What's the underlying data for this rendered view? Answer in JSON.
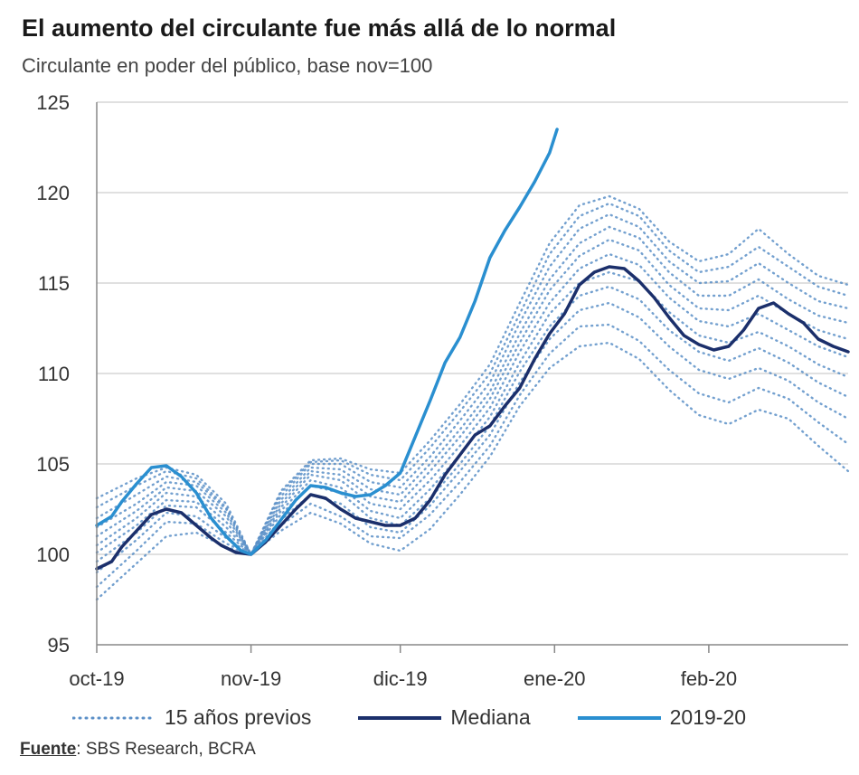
{
  "chart_data": {
    "type": "line",
    "title": "El aumento del circulante fue más allá de lo normal",
    "subtitle": "Circulante en poder del público, base nov=100",
    "x_ticks": [
      {
        "label": "oct-19",
        "x": 0
      },
      {
        "label": "nov-19",
        "x": 31
      },
      {
        "label": "dic-19",
        "x": 61
      },
      {
        "label": "ene-20",
        "x": 92
      },
      {
        "label": "feb-20",
        "x": 123
      }
    ],
    "xlim": [
      0,
      151
    ],
    "ylim": [
      95,
      125
    ],
    "y_ticks": [
      95,
      100,
      105,
      110,
      115,
      120,
      125
    ],
    "grid": true,
    "legend": [
      {
        "label": "15 años previos",
        "style": "dotted",
        "color": "#5b8fc7"
      },
      {
        "label": "Mediana",
        "style": "solid",
        "color": "#1b2f6b"
      },
      {
        "label": "2019-20",
        "style": "solid",
        "color": "#2a8fd0"
      }
    ],
    "series": [
      {
        "name": "Mediana",
        "color": "#1b2f6b",
        "x": [
          0,
          3,
          5,
          8,
          11,
          14,
          17,
          20,
          23,
          25,
          28,
          31,
          34,
          37,
          40,
          43,
          46,
          49,
          52,
          55,
          58,
          61,
          64,
          67,
          70,
          73,
          76,
          79,
          82,
          85,
          88,
          91,
          94,
          97,
          100,
          103,
          106,
          109,
          112,
          115,
          118,
          121,
          124,
          127,
          130,
          133,
          136,
          139,
          142,
          145,
          148,
          151
        ],
        "values": [
          99.2,
          99.6,
          100.4,
          101.3,
          102.2,
          102.5,
          102.3,
          101.6,
          100.9,
          100.5,
          100.1,
          100.0,
          100.7,
          101.6,
          102.5,
          103.3,
          103.1,
          102.5,
          102.0,
          101.8,
          101.6,
          101.6,
          102.0,
          103.0,
          104.4,
          105.5,
          106.6,
          107.1,
          108.2,
          109.2,
          110.8,
          112.2,
          113.3,
          114.9,
          115.6,
          115.9,
          115.8,
          115.1,
          114.2,
          113.1,
          112.1,
          111.6,
          111.3,
          111.5,
          112.4,
          113.6,
          113.9,
          113.3,
          112.8,
          111.9,
          111.5,
          111.2
        ]
      },
      {
        "name": "2019-20",
        "color": "#2a8fd0",
        "x": [
          0,
          3,
          5,
          8,
          11,
          14,
          17,
          20,
          23,
          26,
          29,
          31,
          34,
          37,
          40,
          43,
          46,
          49,
          52,
          55,
          58,
          61,
          64,
          67,
          70,
          73,
          76,
          79,
          82,
          85,
          88,
          91,
          92.5
        ],
        "values": [
          101.6,
          102.1,
          102.9,
          103.9,
          104.8,
          104.9,
          104.3,
          103.4,
          102.0,
          101.0,
          100.2,
          100.0,
          100.8,
          101.9,
          103.0,
          103.8,
          103.7,
          103.4,
          103.2,
          103.3,
          103.8,
          104.5,
          106.5,
          108.5,
          110.6,
          112.0,
          114.0,
          116.4,
          117.9,
          119.2,
          120.6,
          122.2,
          123.5
        ]
      }
    ],
    "previous_years": [
      {
        "x": [
          0,
          8,
          14,
          20,
          26,
          31,
          37,
          43,
          49,
          55,
          61,
          67,
          73,
          79,
          85,
          91,
          97,
          103,
          109,
          115,
          121,
          127,
          133,
          139,
          145,
          151
        ],
        "values": [
          97.5,
          99.5,
          101.0,
          101.2,
          100.4,
          100.0,
          101.3,
          102.3,
          101.7,
          100.6,
          100.2,
          101.4,
          103.3,
          105.4,
          108.2,
          110.3,
          111.5,
          111.7,
          110.8,
          109.1,
          107.7,
          107.2,
          108.0,
          107.5,
          106.0,
          104.6
        ]
      },
      {
        "x": [
          0,
          8,
          14,
          20,
          26,
          31,
          37,
          43,
          49,
          55,
          61,
          67,
          73,
          79,
          85,
          91,
          97,
          103,
          109,
          115,
          121,
          127,
          133,
          139,
          145,
          151
        ],
        "values": [
          98.2,
          100.2,
          101.8,
          101.7,
          100.6,
          100.0,
          101.6,
          102.8,
          102.1,
          101.0,
          100.9,
          102.2,
          104.0,
          106.0,
          108.8,
          111.1,
          112.6,
          112.7,
          111.8,
          110.2,
          108.9,
          108.4,
          109.2,
          108.6,
          107.3,
          106.1
        ]
      },
      {
        "x": [
          0,
          8,
          14,
          20,
          26,
          31,
          37,
          43,
          49,
          55,
          61,
          67,
          73,
          79,
          85,
          91,
          97,
          103,
          109,
          115,
          121,
          127,
          133,
          139,
          145,
          151
        ],
        "values": [
          99.0,
          100.8,
          102.3,
          102.1,
          100.9,
          100.0,
          101.9,
          103.3,
          102.8,
          101.5,
          101.2,
          102.7,
          104.6,
          106.6,
          109.5,
          111.9,
          113.5,
          113.9,
          113.1,
          111.5,
          110.2,
          109.7,
          110.3,
          109.6,
          108.4,
          107.5
        ]
      },
      {
        "x": [
          0,
          8,
          14,
          20,
          26,
          31,
          37,
          43,
          49,
          55,
          61,
          67,
          73,
          79,
          85,
          91,
          97,
          103,
          109,
          115,
          121,
          127,
          133,
          139,
          145,
          151
        ],
        "values": [
          99.6,
          101.2,
          102.7,
          102.6,
          101.2,
          100.0,
          102.2,
          103.8,
          103.4,
          102.0,
          101.6,
          103.1,
          105.0,
          107.1,
          110.1,
          112.6,
          114.3,
          114.8,
          114.1,
          112.4,
          111.2,
          110.7,
          111.4,
          110.6,
          109.5,
          108.7
        ]
      },
      {
        "x": [
          0,
          8,
          14,
          20,
          26,
          31,
          37,
          43,
          49,
          55,
          61,
          67,
          73,
          79,
          85,
          91,
          97,
          103,
          109,
          115,
          121,
          127,
          133,
          139,
          145,
          151
        ],
        "values": [
          100.1,
          101.6,
          103.0,
          102.9,
          101.5,
          100.0,
          102.4,
          104.1,
          103.7,
          102.4,
          102.0,
          103.6,
          105.5,
          107.6,
          110.6,
          113.3,
          115.0,
          115.6,
          115.1,
          113.4,
          112.1,
          111.7,
          112.3,
          111.5,
          110.5,
          109.8
        ]
      },
      {
        "x": [
          0,
          8,
          14,
          20,
          26,
          31,
          37,
          43,
          49,
          55,
          61,
          67,
          73,
          79,
          85,
          91,
          97,
          103,
          109,
          115,
          121,
          127,
          133,
          139,
          145,
          151
        ],
        "values": [
          100.5,
          102.0,
          103.4,
          103.2,
          101.8,
          100.0,
          102.6,
          104.4,
          104.1,
          102.8,
          102.5,
          104.1,
          106.0,
          108.1,
          111.2,
          113.9,
          115.8,
          116.6,
          116.0,
          114.2,
          112.9,
          112.6,
          113.3,
          112.4,
          111.5,
          110.9
        ]
      },
      {
        "x": [
          0,
          8,
          14,
          20,
          26,
          31,
          37,
          43,
          49,
          55,
          61,
          67,
          73,
          79,
          85,
          91,
          97,
          103,
          109,
          115,
          121,
          127,
          133,
          139,
          145,
          151
        ],
        "values": [
          101.0,
          102.4,
          103.7,
          103.5,
          102.1,
          100.0,
          102.8,
          104.6,
          104.4,
          103.2,
          102.9,
          104.6,
          106.5,
          108.6,
          111.7,
          114.6,
          116.5,
          117.4,
          116.8,
          114.9,
          113.6,
          113.5,
          114.3,
          113.3,
          112.4,
          111.9
        ]
      },
      {
        "x": [
          0,
          8,
          14,
          20,
          26,
          31,
          37,
          43,
          49,
          55,
          61,
          67,
          73,
          79,
          85,
          91,
          97,
          103,
          109,
          115,
          121,
          127,
          133,
          139,
          145,
          151
        ],
        "values": [
          101.5,
          102.8,
          104.0,
          103.8,
          102.3,
          100.0,
          103.0,
          104.8,
          104.7,
          103.6,
          103.3,
          105.0,
          106.9,
          109.0,
          112.2,
          115.2,
          117.2,
          118.1,
          117.5,
          115.6,
          114.3,
          114.3,
          115.2,
          114.1,
          113.2,
          112.8
        ]
      },
      {
        "x": [
          0,
          8,
          14,
          20,
          26,
          31,
          37,
          43,
          49,
          55,
          61,
          67,
          73,
          79,
          85,
          91,
          97,
          103,
          109,
          115,
          121,
          127,
          133,
          139,
          145,
          151
        ],
        "values": [
          102.0,
          103.3,
          104.3,
          104.0,
          102.5,
          100.0,
          103.2,
          105.0,
          105.0,
          104.0,
          103.7,
          105.4,
          107.4,
          109.5,
          112.8,
          115.9,
          118.0,
          118.8,
          118.1,
          116.2,
          115.0,
          115.1,
          116.1,
          115.0,
          114.0,
          113.6
        ]
      },
      {
        "x": [
          0,
          8,
          14,
          20,
          26,
          31,
          37,
          43,
          49,
          55,
          61,
          67,
          73,
          79,
          85,
          91,
          97,
          103,
          109,
          115,
          121,
          127,
          133,
          139,
          145,
          151
        ],
        "values": [
          102.6,
          103.8,
          104.6,
          104.2,
          102.6,
          100.0,
          103.4,
          105.1,
          105.2,
          104.4,
          104.1,
          105.9,
          107.9,
          110.0,
          113.3,
          116.6,
          118.7,
          119.4,
          118.7,
          116.8,
          115.6,
          115.9,
          117.0,
          115.9,
          114.8,
          114.3
        ]
      },
      {
        "x": [
          0,
          8,
          14,
          20,
          26,
          31,
          37,
          43,
          49,
          55,
          61,
          67,
          73,
          79,
          85,
          91,
          97,
          103,
          109,
          115,
          121,
          127,
          133,
          139,
          145,
          151
        ],
        "values": [
          103.1,
          104.2,
          104.8,
          104.4,
          102.8,
          100.0,
          103.5,
          105.2,
          105.3,
          104.7,
          104.5,
          106.3,
          108.3,
          110.5,
          113.9,
          117.2,
          119.3,
          119.8,
          119.1,
          117.3,
          116.2,
          116.6,
          118.0,
          116.6,
          115.4,
          114.9
        ]
      }
    ]
  },
  "legend": {
    "previous_label": "15 años previos",
    "median_label": "Mediana",
    "current_label": "2019-20"
  },
  "source": {
    "label": "Fuente",
    "text": ": SBS Research, BCRA"
  }
}
